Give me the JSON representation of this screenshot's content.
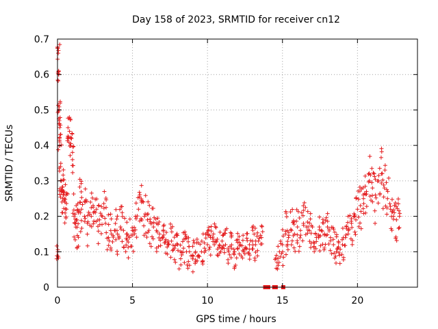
{
  "chart_data": {
    "type": "scatter",
    "title": "Day 158 of 2023, SRMTID for receiver cn12",
    "xlabel": "GPS time / hours",
    "ylabel": "SRMTID / TECUs",
    "xlim": [
      0,
      24
    ],
    "ylim": [
      0,
      0.7
    ],
    "x_ticks": [
      "0",
      "5",
      "10",
      "15",
      "20"
    ],
    "y_ticks": [
      "0",
      "0.1",
      "0.2",
      "0.3",
      "0.4",
      "0.5",
      "0.6",
      "0.7"
    ],
    "grid": true,
    "marker": "plus",
    "color": "#e41a1c",
    "series": [
      {
        "name": "SRMTID",
        "x": [
          0.02,
          0.05,
          0.08,
          0.1,
          0.12,
          0.15,
          0.2,
          0.25,
          0.3,
          0.35,
          0.4,
          0.5,
          0.6,
          0.7,
          0.8,
          0.9,
          1.0,
          1.1,
          1.2,
          1.3,
          1.4,
          1.5,
          1.6,
          1.8,
          2.0,
          2.2,
          2.4,
          2.6,
          2.8,
          3.0,
          3.2,
          3.4,
          3.6,
          3.8,
          4.0,
          4.2,
          4.4,
          4.6,
          4.8,
          5.0,
          5.2,
          5.4,
          5.6,
          5.8,
          6.0,
          6.2,
          6.4,
          6.6,
          6.8,
          7.0,
          7.2,
          7.4,
          7.6,
          7.8,
          8.0,
          8.2,
          8.4,
          8.6,
          8.8,
          9.0,
          9.2,
          9.4,
          9.6,
          9.8,
          10.0,
          10.2,
          10.4,
          10.6,
          10.8,
          11.0,
          11.2,
          11.4,
          11.6,
          11.8,
          12.0,
          12.2,
          12.4,
          12.6,
          12.8,
          13.0,
          13.2,
          13.4,
          13.6,
          14.6,
          14.8,
          15.0,
          15.2,
          15.4,
          15.6,
          15.8,
          16.0,
          16.2,
          16.4,
          16.6,
          16.8,
          17.0,
          17.2,
          17.4,
          17.6,
          17.8,
          18.0,
          18.2,
          18.4,
          18.6,
          18.8,
          19.0,
          19.2,
          19.4,
          19.6,
          19.8,
          20.0,
          20.2,
          20.4,
          20.6,
          20.8,
          21.0,
          21.2,
          21.4,
          21.6,
          21.8,
          22.0,
          22.2,
          22.4,
          22.6,
          22.8
        ],
        "y": [
          0.1,
          0.66,
          0.6,
          0.5,
          0.47,
          0.41,
          0.34,
          0.3,
          0.27,
          0.25,
          0.26,
          0.24,
          0.22,
          0.45,
          0.44,
          0.42,
          0.36,
          0.2,
          0.18,
          0.19,
          0.21,
          0.24,
          0.22,
          0.2,
          0.18,
          0.24,
          0.21,
          0.22,
          0.19,
          0.2,
          0.18,
          0.14,
          0.15,
          0.16,
          0.15,
          0.17,
          0.16,
          0.15,
          0.14,
          0.16,
          0.2,
          0.22,
          0.24,
          0.2,
          0.19,
          0.18,
          0.17,
          0.16,
          0.15,
          0.14,
          0.13,
          0.12,
          0.13,
          0.11,
          0.12,
          0.1,
          0.11,
          0.1,
          0.1,
          0.09,
          0.1,
          0.09,
          0.1,
          0.11,
          0.12,
          0.14,
          0.15,
          0.13,
          0.12,
          0.11,
          0.12,
          0.1,
          0.11,
          0.1,
          0.11,
          0.12,
          0.1,
          0.11,
          0.12,
          0.13,
          0.12,
          0.13,
          0.14,
          0.09,
          0.1,
          0.12,
          0.15,
          0.14,
          0.16,
          0.15,
          0.17,
          0.16,
          0.18,
          0.17,
          0.16,
          0.17,
          0.15,
          0.14,
          0.16,
          0.15,
          0.17,
          0.14,
          0.12,
          0.1,
          0.09,
          0.12,
          0.14,
          0.16,
          0.18,
          0.2,
          0.22,
          0.23,
          0.25,
          0.27,
          0.3,
          0.28,
          0.26,
          0.3,
          0.32,
          0.28,
          0.25,
          0.22,
          0.2,
          0.19,
          0.2
        ],
        "spread": [
          0.02,
          0.03,
          0.02,
          0.05,
          0.04,
          0.05,
          0.08,
          0.06,
          0.07,
          0.06,
          0.06,
          0.07,
          0.06,
          0.05,
          0.05,
          0.05,
          0.06,
          0.07,
          0.07,
          0.08,
          0.08,
          0.09,
          0.08,
          0.08,
          0.07,
          0.07,
          0.07,
          0.07,
          0.07,
          0.08,
          0.09,
          0.08,
          0.07,
          0.06,
          0.07,
          0.06,
          0.06,
          0.06,
          0.06,
          0.06,
          0.06,
          0.07,
          0.09,
          0.07,
          0.06,
          0.07,
          0.07,
          0.06,
          0.06,
          0.05,
          0.05,
          0.05,
          0.05,
          0.05,
          0.05,
          0.05,
          0.05,
          0.05,
          0.05,
          0.05,
          0.05,
          0.05,
          0.05,
          0.05,
          0.05,
          0.05,
          0.05,
          0.05,
          0.05,
          0.05,
          0.05,
          0.05,
          0.05,
          0.05,
          0.05,
          0.05,
          0.05,
          0.05,
          0.05,
          0.05,
          0.05,
          0.05,
          0.05,
          0.04,
          0.05,
          0.06,
          0.07,
          0.06,
          0.06,
          0.06,
          0.06,
          0.06,
          0.06,
          0.06,
          0.05,
          0.06,
          0.05,
          0.06,
          0.05,
          0.05,
          0.05,
          0.05,
          0.05,
          0.05,
          0.05,
          0.05,
          0.05,
          0.06,
          0.06,
          0.06,
          0.07,
          0.07,
          0.07,
          0.08,
          0.08,
          0.08,
          0.08,
          0.08,
          0.08,
          0.08,
          0.07,
          0.07,
          0.06,
          0.06,
          0.05
        ]
      }
    ],
    "gap_markers_x": [
      13.85,
      13.95,
      14.05,
      14.45,
      14.55,
      15.05
    ]
  }
}
